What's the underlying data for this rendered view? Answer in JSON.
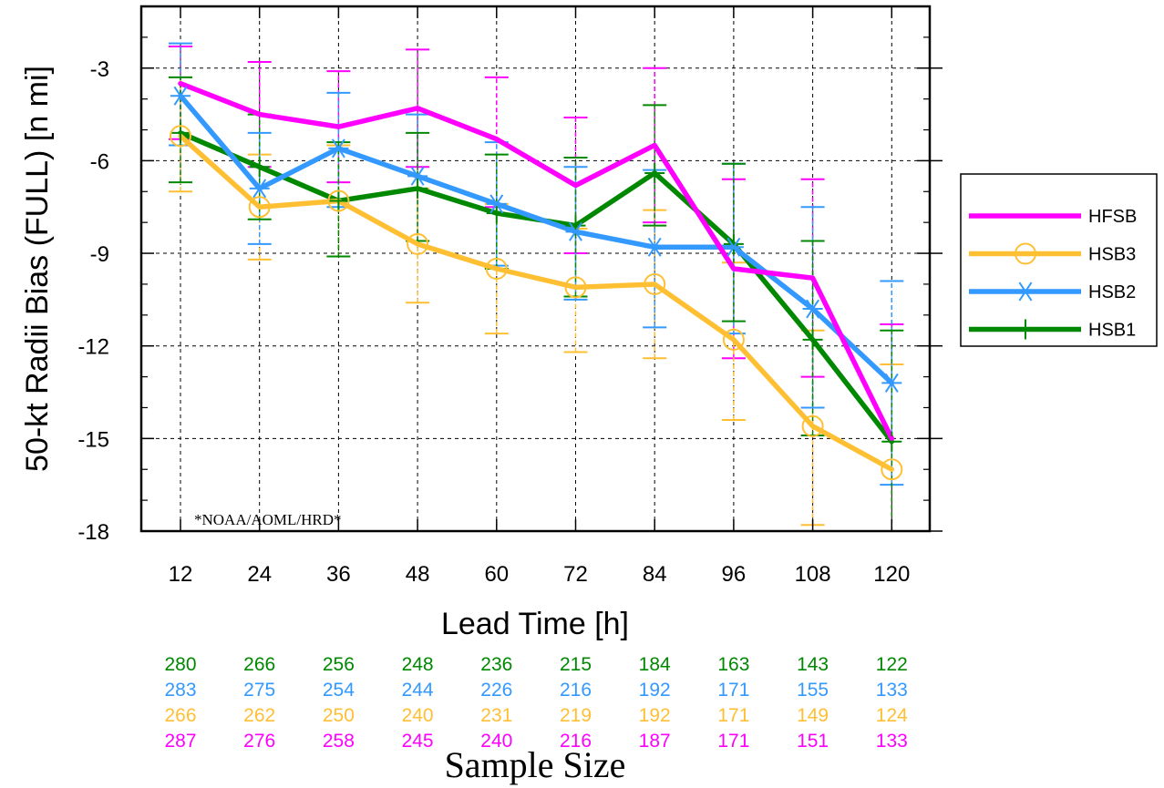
{
  "chart_data": {
    "type": "line",
    "ylabel": "50-kt Radii Bias (FULL) [n mi]",
    "xlabel": "Lead Time [h]",
    "x": [
      12,
      24,
      36,
      48,
      60,
      72,
      84,
      96,
      108,
      120
    ],
    "xticks": [
      "12",
      "24",
      "36",
      "48",
      "60",
      "72",
      "84",
      "96",
      "108",
      "120"
    ],
    "ylim": [
      -18,
      -1
    ],
    "yticks": [
      "-3",
      "-6",
      "-9",
      "-12",
      "-15",
      "-18"
    ],
    "ytick_values": [
      -3,
      -6,
      -9,
      -12,
      -15,
      -18
    ],
    "grid": true,
    "watermark": "*NOAA/AOML/HRD*",
    "legend_position": "right",
    "series": [
      {
        "name": "HFSB",
        "color": "#ff00ff",
        "marker": "dot",
        "values": [
          -3.5,
          -4.5,
          -4.9,
          -4.3,
          -5.3,
          -6.8,
          -5.5,
          -9.5,
          -9.8,
          -15.0
        ],
        "err_low": [
          -5.3,
          -6.2,
          -6.7,
          -6.2,
          -7.5,
          -9.0,
          -8.0,
          -12.4,
          -13.0,
          -18.0
        ],
        "err_high": [
          -2.3,
          -2.8,
          -3.1,
          -2.4,
          -3.3,
          -4.6,
          -3.0,
          -6.6,
          -6.6,
          -11.3
        ]
      },
      {
        "name": "HSB3",
        "color": "#ffbf33",
        "marker": "circle",
        "values": [
          -5.2,
          -7.5,
          -7.3,
          -8.7,
          -9.5,
          -10.1,
          -10.0,
          -11.8,
          -14.6,
          -16.0
        ],
        "err_low": [
          -7.0,
          -9.2,
          -9.1,
          -10.6,
          -11.6,
          -12.2,
          -12.4,
          -14.4,
          -17.8,
          -19.5
        ],
        "err_high": [
          -3.3,
          -5.8,
          -5.5,
          -6.9,
          -7.4,
          -8.2,
          -7.6,
          -9.3,
          -11.5,
          -12.6
        ]
      },
      {
        "name": "HSB2",
        "color": "#3399ff",
        "marker": "asterisk",
        "values": [
          -3.9,
          -6.9,
          -5.6,
          -6.5,
          -7.4,
          -8.3,
          -8.8,
          -8.8,
          -10.8,
          -13.2
        ],
        "err_low": [
          -5.5,
          -8.7,
          -7.5,
          -8.6,
          -9.4,
          -10.5,
          -11.4,
          -11.6,
          -14.0,
          -16.5
        ],
        "err_high": [
          -2.2,
          -5.1,
          -3.8,
          -4.5,
          -5.4,
          -6.2,
          -6.3,
          -6.1,
          -7.5,
          -9.9
        ]
      },
      {
        "name": "HSB1",
        "color": "#008800",
        "marker": "plus",
        "values": [
          -5.1,
          -6.2,
          -7.3,
          -6.9,
          -7.7,
          -8.1,
          -6.4,
          -8.7,
          -11.8,
          -15.1
        ],
        "err_low": [
          -6.7,
          -7.9,
          -9.1,
          -8.6,
          -9.5,
          -10.4,
          -8.1,
          -11.2,
          -14.9,
          -18.0
        ],
        "err_high": [
          -3.3,
          -4.5,
          -5.4,
          -5.1,
          -5.8,
          -5.9,
          -4.2,
          -6.1,
          -8.6,
          -11.5
        ]
      }
    ],
    "sample_size": {
      "title": "Sample Size",
      "rows": [
        {
          "color": "#008800",
          "values": [
            "280",
            "266",
            "256",
            "248",
            "236",
            "215",
            "184",
            "163",
            "143",
            "122"
          ]
        },
        {
          "color": "#3399ff",
          "values": [
            "283",
            "275",
            "254",
            "244",
            "226",
            "216",
            "192",
            "171",
            "155",
            "133"
          ]
        },
        {
          "color": "#ffbf33",
          "values": [
            "266",
            "262",
            "250",
            "240",
            "231",
            "219",
            "192",
            "171",
            "149",
            "124"
          ]
        },
        {
          "color": "#ff00ff",
          "values": [
            "287",
            "276",
            "258",
            "245",
            "240",
            "216",
            "187",
            "171",
            "151",
            "133"
          ]
        }
      ]
    }
  }
}
